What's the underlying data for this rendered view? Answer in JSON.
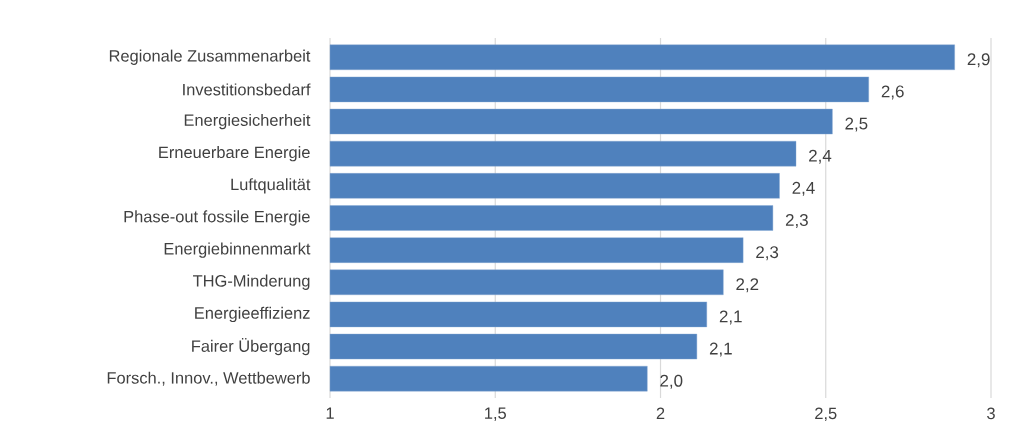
{
  "chart_data": {
    "type": "bar",
    "orientation": "horizontal",
    "categories": [
      "Regionale Zusammenarbeit",
      "Investitionsbedarf",
      "Energiesicherheit",
      "Erneuerbare Energie",
      "Luftqualität",
      "Phase-out fossile Energie",
      "Energiebinnenmarkt",
      "THG-Minderung",
      "Energieeffizienz",
      "Fairer Übergang",
      "Forsch., Innov., Wettbewerb"
    ],
    "values": [
      2.89,
      2.63,
      2.52,
      2.41,
      2.36,
      2.34,
      2.25,
      2.19,
      2.14,
      2.11,
      1.96
    ],
    "value_labels": [
      "2,9",
      "2,6",
      "2,5",
      "2,4",
      "2,4",
      "2,3",
      "2,3",
      "2,2",
      "2,1",
      "2,1",
      "2,0"
    ],
    "color": "#4f81bd",
    "xlim": [
      1,
      3
    ],
    "xticks": [
      1,
      {
        "value": 1.5,
        "label": "1,5"
      },
      2,
      {
        "value": 2.5,
        "label": "2,5"
      },
      3
    ],
    "grid": "x"
  }
}
